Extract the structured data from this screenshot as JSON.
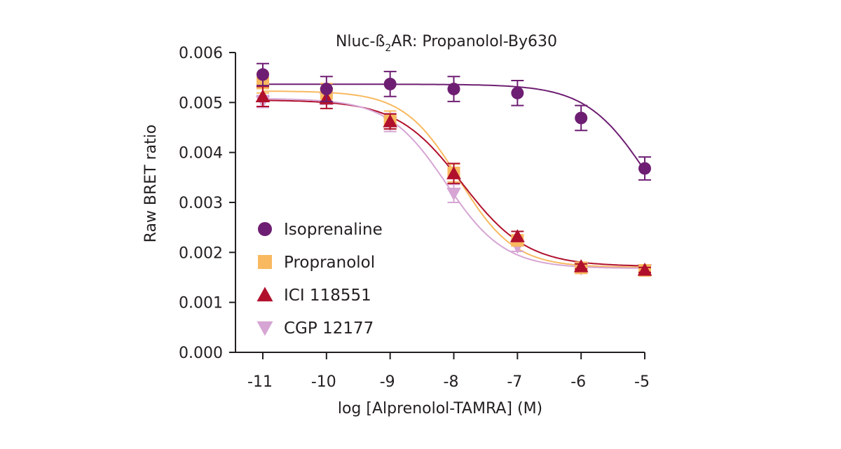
{
  "chart_data": {
    "type": "scatter",
    "title_prefix": "Nluc-ß",
    "title_sub": "2",
    "title_suffix": "AR: Propanolol-By630",
    "xlabel": "log [Alprenolol-TAMRA] (M)",
    "ylabel": "Raw BRET ratio",
    "xlim": [
      -11.4,
      -4.9
    ],
    "ylim": [
      0,
      0.006
    ],
    "x_ticks": [
      -11,
      -10,
      -9,
      -8,
      -7,
      -6,
      -5
    ],
    "x_tick_labels": [
      "-11",
      "-10",
      "-9",
      "-8",
      "-7",
      "-6",
      "-5"
    ],
    "y_ticks": [
      0,
      0.001,
      0.002,
      0.003,
      0.004,
      0.005,
      0.006
    ],
    "y_tick_labels": [
      "0.000",
      "0.001",
      "0.002",
      "0.003",
      "0.004",
      "0.005",
      "0.006"
    ],
    "legend_position": "left-center",
    "series": [
      {
        "name": "Isoprenaline",
        "marker": "circle",
        "color": "#6e1e72",
        "x": [
          -11,
          -10,
          -9,
          -8,
          -7,
          -6,
          -5
        ],
        "y": [
          0.00556,
          0.00527,
          0.00537,
          0.00527,
          0.00519,
          0.00469,
          0.00368
        ],
        "err": [
          0.00022,
          0.00025,
          0.00025,
          0.00025,
          0.00025,
          0.00025,
          0.00023
        ],
        "fit": {
          "top": 0.005365,
          "bottom": 0.00172,
          "logEC50": -4.95,
          "hill": 0.9
        }
      },
      {
        "name": "Propranolol",
        "marker": "square",
        "color": "#f8b960",
        "x": [
          -11,
          -10,
          -9,
          -8,
          -7,
          -6,
          -5
        ],
        "y": [
          0.00539,
          0.00518,
          0.00465,
          0.00359,
          0.00224,
          0.00169,
          0.00164
        ],
        "err": [
          0.0002,
          0.0002,
          0.00018,
          0.00018,
          0.0001,
          5e-05,
          5e-05
        ],
        "fit": {
          "top": 0.00523,
          "bottom": 0.0017,
          "logEC50": -7.92,
          "hill": 1.0
        }
      },
      {
        "name": "ICI 118551",
        "marker": "triangle",
        "color": "#b0102c",
        "x": [
          -11,
          -10,
          -9,
          -8,
          -7,
          -6,
          -5
        ],
        "y": [
          0.00512,
          0.00508,
          0.00462,
          0.00358,
          0.00232,
          0.00172,
          0.00165
        ],
        "err": [
          0.0002,
          0.0002,
          0.00015,
          0.0002,
          0.0001,
          5e-05,
          5e-05
        ],
        "fit": {
          "top": 0.00505,
          "bottom": 0.00172,
          "logEC50": -7.87,
          "hill": 0.85
        }
      },
      {
        "name": "CGP 12177",
        "marker": "triangle-down",
        "color": "#d6a5d4",
        "x": [
          -11,
          -10,
          -9,
          -8,
          -7,
          -6,
          -5
        ],
        "y": [
          0.00502,
          0.00508,
          0.0046,
          0.00318,
          0.00212,
          0.00168,
          0.00165
        ],
        "err": [
          0.00012,
          0.00012,
          0.00018,
          0.00018,
          0.0001,
          5e-05,
          5e-05
        ],
        "fit": {
          "top": 0.00508,
          "bottom": 0.00168,
          "logEC50": -8.12,
          "hill": 0.95
        }
      }
    ]
  }
}
